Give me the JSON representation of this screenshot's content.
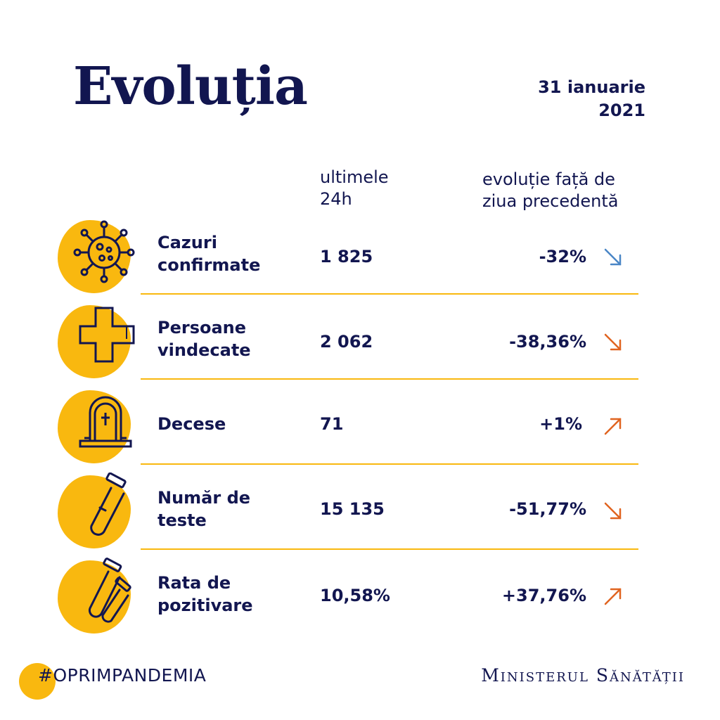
{
  "header": {
    "title": "Evoluția",
    "date_line1": "31 ianuarie",
    "date_line2": "2021"
  },
  "columns": {
    "last24_line1": "ultimele",
    "last24_line2": "24h",
    "evolution_line1": "evoluție față de",
    "evolution_line2": "ziua precedentă"
  },
  "rows": [
    {
      "label_line1": "Cazuri",
      "label_line2": "confirmate",
      "value": "1 825",
      "change": "-32%",
      "icon": "virus-icon",
      "trend": "down",
      "trend_color": "#4a86c6"
    },
    {
      "label_line1": "Persoane",
      "label_line2": "vindecate",
      "value": "2 062",
      "change": "-38,36%",
      "icon": "medical-cross-icon",
      "trend": "down",
      "trend_color": "#e06420"
    },
    {
      "label_line1": "Decese",
      "label_line2": "",
      "value": "71",
      "change": "+1%",
      "icon": "tombstone-icon",
      "trend": "up",
      "trend_color": "#e06420"
    },
    {
      "label_line1": "Număr de",
      "label_line2": "teste",
      "value": "15 135",
      "change": "-51,77%",
      "icon": "test-tube-icon",
      "trend": "down",
      "trend_color": "#e06420"
    },
    {
      "label_line1": "Rata de",
      "label_line2": "pozitivare",
      "value": "10,58%",
      "change": "+37,76%",
      "icon": "test-tubes-icon",
      "trend": "up",
      "trend_color": "#e06420"
    }
  ],
  "footer": {
    "hashtag": "#OPRIMPANDEMIA",
    "ministry": "Ministerul Sănătății"
  },
  "colors": {
    "navy": "#121650",
    "accent": "#f9b80f"
  }
}
